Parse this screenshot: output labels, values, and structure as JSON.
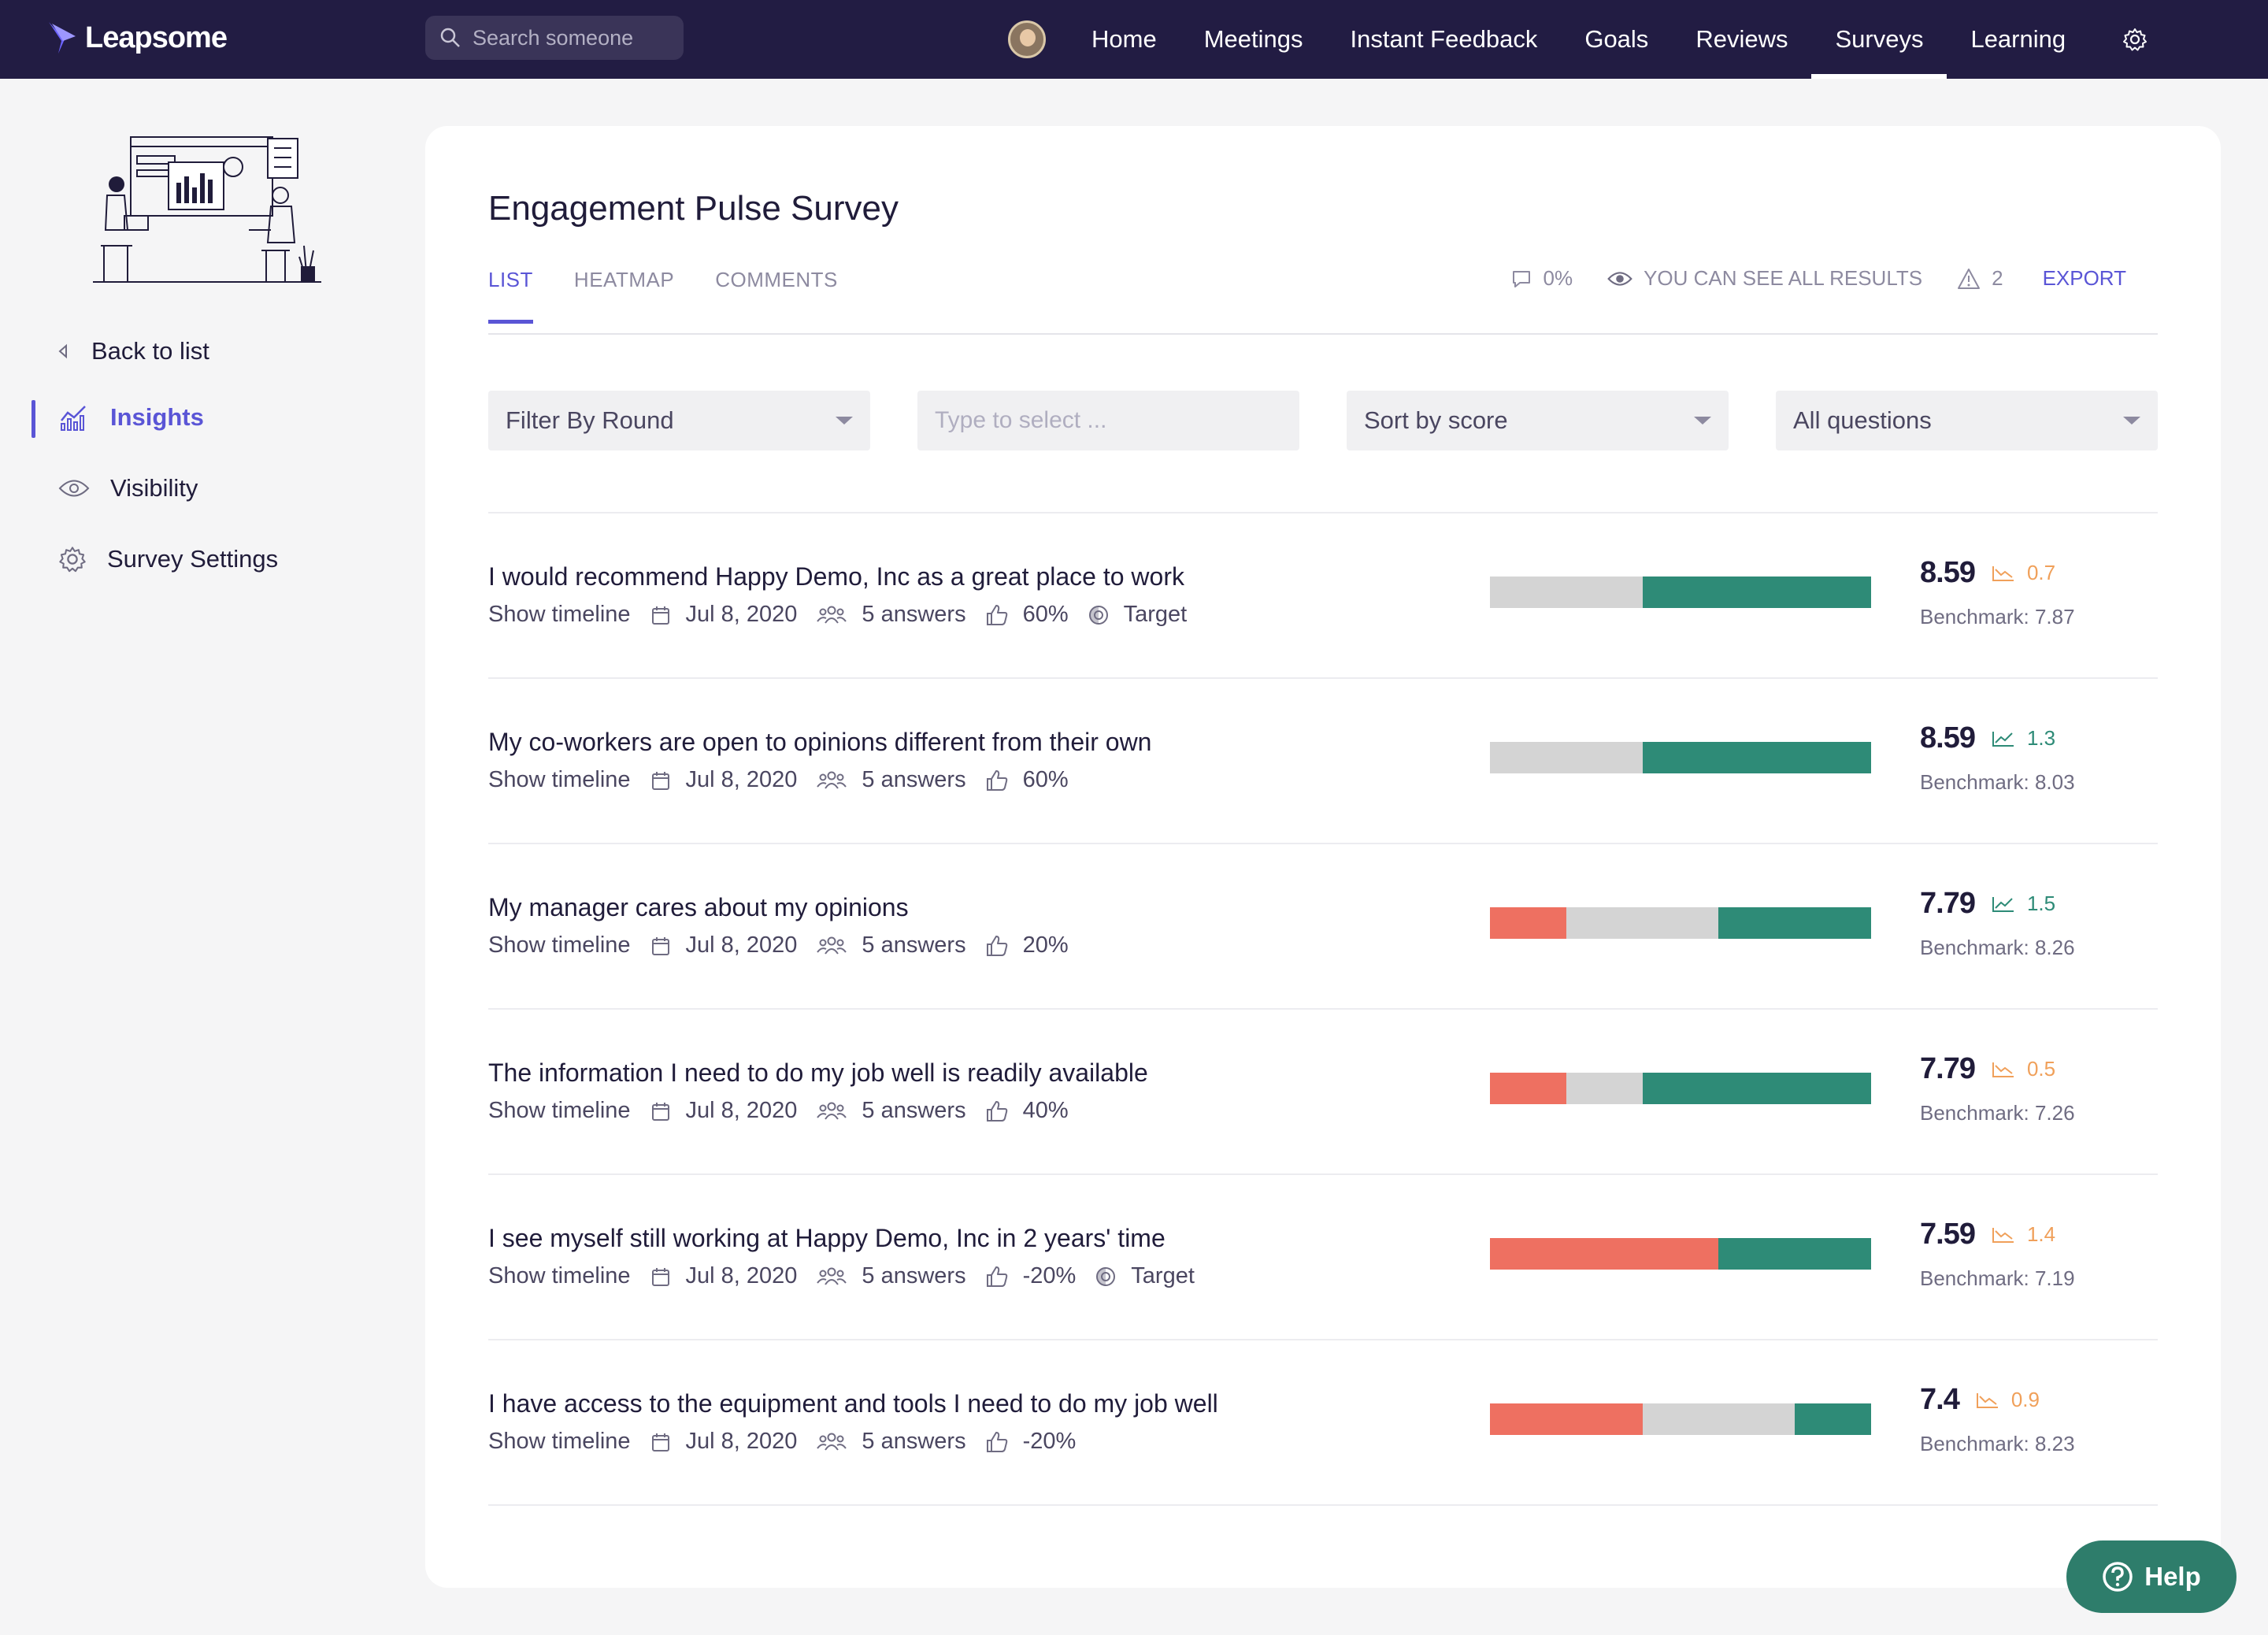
{
  "app": {
    "name": "Leapsome"
  },
  "search": {
    "placeholder": "Search someone"
  },
  "nav": {
    "items": [
      {
        "label": "Home"
      },
      {
        "label": "Meetings"
      },
      {
        "label": "Instant Feedback"
      },
      {
        "label": "Goals"
      },
      {
        "label": "Reviews"
      },
      {
        "label": "Surveys"
      },
      {
        "label": "Learning"
      }
    ],
    "active": "Surveys"
  },
  "sidebar": {
    "items": [
      {
        "label": "Back to list",
        "icon": "chevron-left-icon"
      },
      {
        "label": "Insights",
        "icon": "bar-chart-icon",
        "active": true
      },
      {
        "label": "Visibility",
        "icon": "eye-icon"
      },
      {
        "label": "Survey Settings",
        "icon": "gear-icon"
      }
    ]
  },
  "survey": {
    "title": "Engagement Pulse Survey",
    "tabs": [
      {
        "label": "LIST"
      },
      {
        "label": "HEATMAP"
      },
      {
        "label": "COMMENTS"
      }
    ],
    "comment_rate": "0%",
    "visibility_text": "YOU CAN SEE ALL RESULTS",
    "warnings": "2",
    "export_label": "EXPORT"
  },
  "filters": {
    "round": "Filter By Round",
    "select_placeholder": "Type to select ...",
    "sort": "Sort by score",
    "questions": "All questions"
  },
  "rows": [
    {
      "question": "I would recommend Happy Demo, Inc as a great place to work",
      "timeline": "Show timeline",
      "date": "Jul 8, 2020",
      "answers": "5 answers",
      "favorability": "60%",
      "target": "Target",
      "score": "8.59",
      "trend": "0.7",
      "trend_dir": "down",
      "benchmark": "Benchmark: 7.87",
      "dist": [
        0,
        40,
        60
      ]
    },
    {
      "question": "My co-workers are open to opinions different from their own",
      "timeline": "Show timeline",
      "date": "Jul 8, 2020",
      "answers": "5 answers",
      "favorability": "60%",
      "target": "",
      "score": "8.59",
      "trend": "1.3",
      "trend_dir": "up",
      "benchmark": "Benchmark: 8.03",
      "dist": [
        0,
        40,
        60
      ]
    },
    {
      "question": "My manager cares about my opinions",
      "timeline": "Show timeline",
      "date": "Jul 8, 2020",
      "answers": "5 answers",
      "favorability": "20%",
      "target": "",
      "score": "7.79",
      "trend": "1.5",
      "trend_dir": "up",
      "benchmark": "Benchmark: 8.26",
      "dist": [
        20,
        40,
        40
      ]
    },
    {
      "question": "The information I need to do my job well is readily available",
      "timeline": "Show timeline",
      "date": "Jul 8, 2020",
      "answers": "5 answers",
      "favorability": "40%",
      "target": "",
      "score": "7.79",
      "trend": "0.5",
      "trend_dir": "down",
      "benchmark": "Benchmark: 7.26",
      "dist": [
        20,
        20,
        60
      ]
    },
    {
      "question": "I see myself still working at Happy Demo, Inc in 2 years' time",
      "timeline": "Show timeline",
      "date": "Jul 8, 2020",
      "answers": "5 answers",
      "favorability": "-20%",
      "target": "Target",
      "score": "7.59",
      "trend": "1.4",
      "trend_dir": "down",
      "benchmark": "Benchmark: 7.19",
      "dist": [
        60,
        0,
        40
      ]
    },
    {
      "question": "I have access to the equipment and tools I need to do my job well",
      "timeline": "Show timeline",
      "date": "Jul 8, 2020",
      "answers": "5 answers",
      "favorability": "-20%",
      "target": "",
      "score": "7.4",
      "trend": "0.9",
      "trend_dir": "down",
      "benchmark": "Benchmark: 8.23",
      "dist": [
        40,
        40,
        20
      ]
    }
  ],
  "colors": {
    "accent": "#5a55d6",
    "nav_bg": "#221c43",
    "negative": "#ee7061",
    "neutral": "#d4d4d4",
    "positive": "#2e8b77",
    "trend_up": "#2e8b77",
    "trend_down": "#f0a05a",
    "help_bg": "#2e7d6b"
  },
  "help": {
    "label": "Help"
  }
}
